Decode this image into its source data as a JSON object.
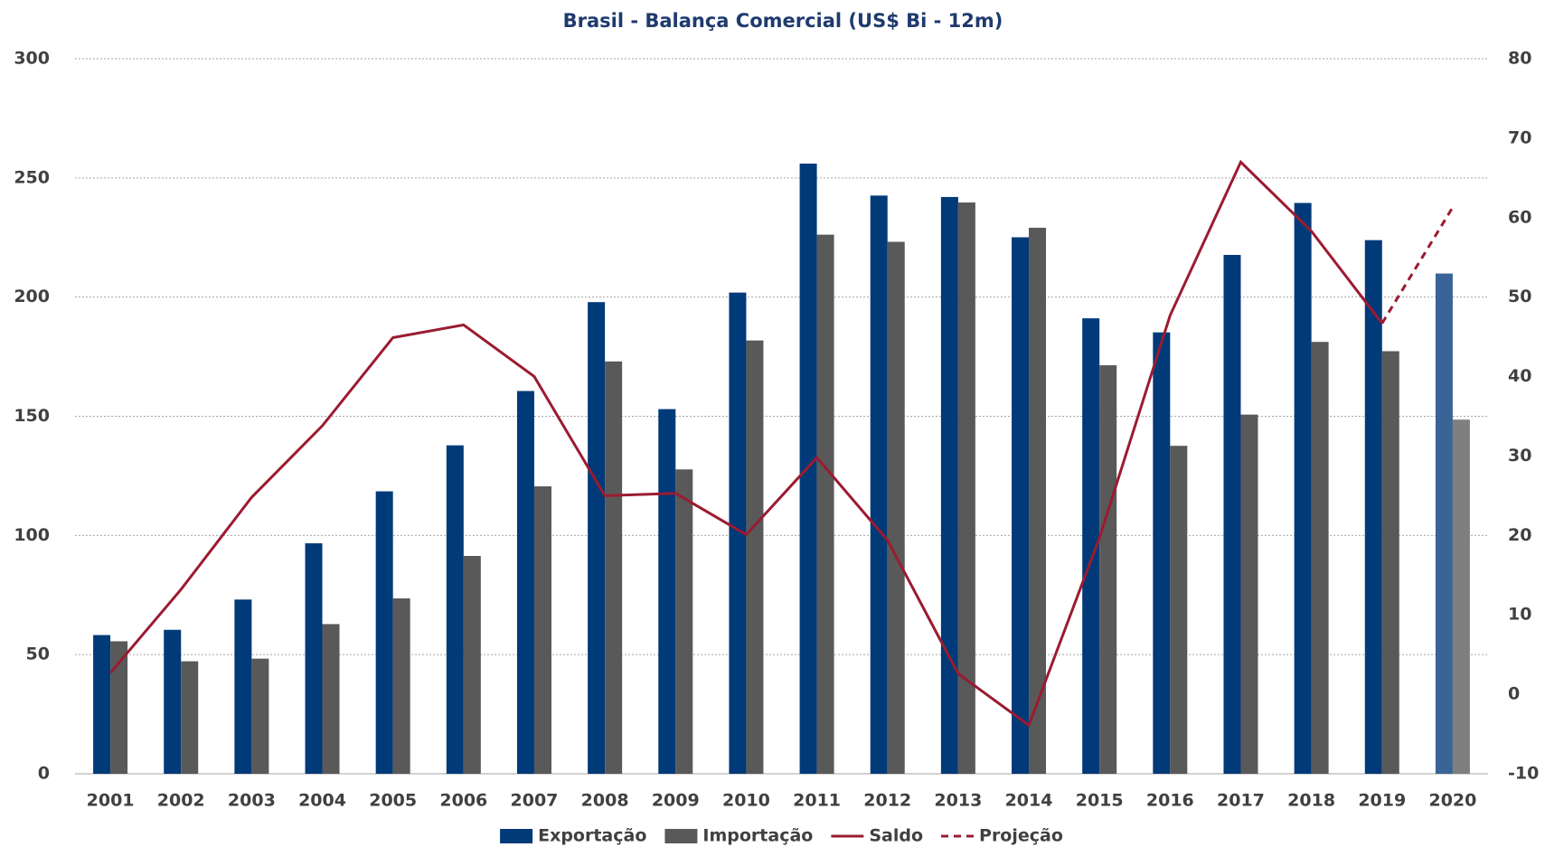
{
  "chart_data": {
    "type": "bar",
    "title": "Brasil - Balança Comercial (US$ Bi - 12m)",
    "categories": [
      "2001",
      "2002",
      "2003",
      "2004",
      "2005",
      "2006",
      "2007",
      "2008",
      "2009",
      "2010",
      "2011",
      "2012",
      "2013",
      "2014",
      "2015",
      "2016",
      "2017",
      "2018",
      "2019",
      "2020"
    ],
    "series": [
      {
        "name": "Exportação",
        "type": "bar",
        "color": "#003a78",
        "colors": [
          "#003a78",
          "#003a78",
          "#003a78",
          "#003a78",
          "#003a78",
          "#003a78",
          "#003a78",
          "#003a78",
          "#003a78",
          "#003a78",
          "#003a78",
          "#003a78",
          "#003a78",
          "#003a78",
          "#003a78",
          "#003a78",
          "#003a78",
          "#003a78",
          "#003a78",
          "#3a6496"
        ],
        "values": [
          58.2,
          60.4,
          73.1,
          96.7,
          118.5,
          137.8,
          160.6,
          197.9,
          153.0,
          201.9,
          256.0,
          242.6,
          242.0,
          225.1,
          191.1,
          185.2,
          217.7,
          239.5,
          223.9,
          209.9
        ]
      },
      {
        "name": "Importação",
        "type": "bar",
        "color": "#595959",
        "colors": [
          "#595959",
          "#595959",
          "#595959",
          "#595959",
          "#595959",
          "#595959",
          "#595959",
          "#595959",
          "#595959",
          "#595959",
          "#595959",
          "#595959",
          "#595959",
          "#595959",
          "#595959",
          "#595959",
          "#595959",
          "#595959",
          "#595959",
          "#7f7f7f"
        ],
        "values": [
          55.6,
          47.2,
          48.3,
          62.8,
          73.6,
          91.4,
          120.6,
          173.0,
          127.7,
          181.8,
          226.2,
          223.2,
          239.7,
          229.1,
          171.4,
          137.6,
          150.7,
          181.2,
          177.3,
          148.6
        ]
      },
      {
        "name": "Saldo",
        "type": "line",
        "axis": "y2",
        "color": "#9b1b30",
        "dashed": false,
        "values": [
          2.7,
          13.2,
          24.8,
          33.8,
          44.9,
          46.5,
          40.0,
          25.0,
          25.3,
          20.1,
          29.8,
          19.4,
          2.6,
          -3.9,
          19.7,
          47.7,
          67.0,
          58.3,
          46.7,
          null
        ]
      },
      {
        "name": "Projeção",
        "type": "line",
        "axis": "y2",
        "color": "#9b1b30",
        "dashed": true,
        "values": [
          null,
          null,
          null,
          null,
          null,
          null,
          null,
          null,
          null,
          null,
          null,
          null,
          null,
          null,
          null,
          null,
          null,
          null,
          46.7,
          61.3
        ]
      }
    ],
    "ylim": [
      0,
      300
    ],
    "yticks": [
      0,
      50,
      100,
      150,
      200,
      250,
      300
    ],
    "y2lim": [
      -10,
      80
    ],
    "y2ticks": [
      -10,
      0,
      10,
      20,
      30,
      40,
      50,
      60,
      70,
      80
    ],
    "grid": true,
    "legend": "bottom"
  }
}
